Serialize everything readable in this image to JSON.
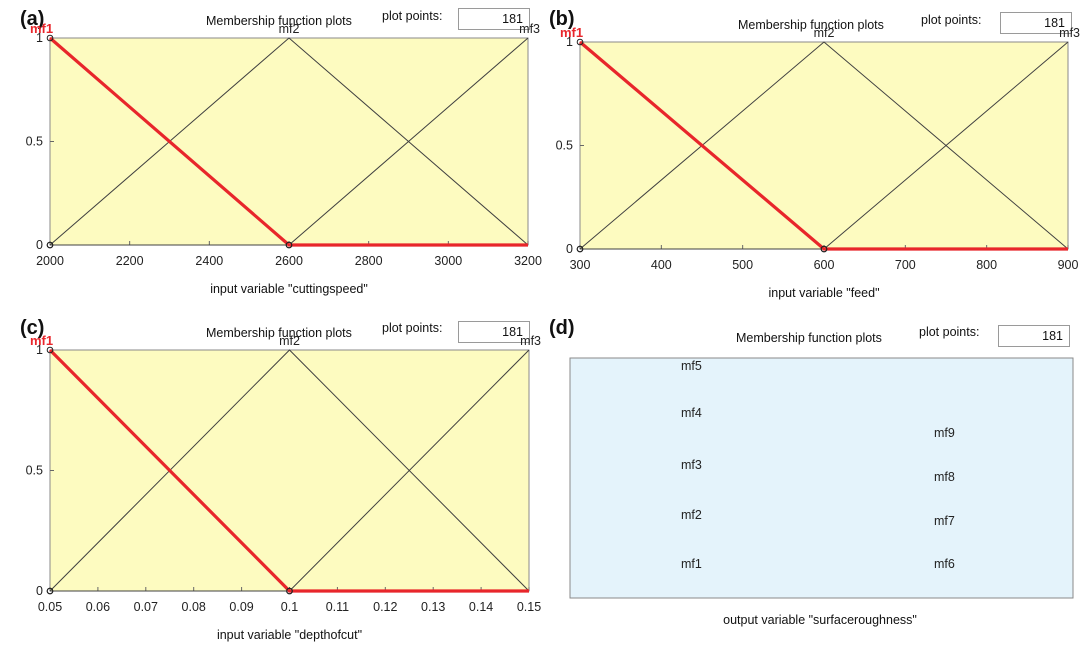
{
  "panels": [
    {
      "letter": "(a)",
      "title": "Membership function plots",
      "plot_points_label": "plot points:",
      "plot_points_value": "181"
    },
    {
      "letter": "(b)",
      "title": "Membership function plots",
      "plot_points_label": "plot points:",
      "plot_points_value": "181"
    },
    {
      "letter": "(c)",
      "title": "Membership function plots",
      "plot_points_label": "plot points:",
      "plot_points_value": "181"
    },
    {
      "letter": "(d)",
      "title": "Membership function plots",
      "plot_points_label": "plot points:",
      "plot_points_value": "181"
    }
  ],
  "colors": {
    "plot_bg": "#fdfbc0",
    "output_bg": "#e4f3fb",
    "selected": "#e8262b",
    "line": "#404040"
  },
  "chart_data": [
    {
      "type": "line",
      "xlabel": "input variable \"cuttingspeed\"",
      "xlim": [
        2000,
        3200
      ],
      "ylim": [
        0,
        1
      ],
      "xticks": [
        "2000",
        "2200",
        "2400",
        "2600",
        "2800",
        "3000",
        "3200"
      ],
      "yticks": [
        "0",
        "0.5",
        "1"
      ],
      "selected": "mf1",
      "series": [
        {
          "name": "mf1",
          "x": [
            2000,
            2600,
            3200
          ],
          "y": [
            1,
            0,
            0
          ]
        },
        {
          "name": "mf2",
          "x": [
            2000,
            2600,
            3200
          ],
          "y": [
            0,
            1,
            0
          ]
        },
        {
          "name": "mf3",
          "x": [
            2000,
            2600,
            3200
          ],
          "y": [
            0,
            0,
            1
          ]
        }
      ]
    },
    {
      "type": "line",
      "xlabel": "input variable \"feed\"",
      "xlim": [
        300,
        900
      ],
      "ylim": [
        0,
        1
      ],
      "xticks": [
        "300",
        "400",
        "500",
        "600",
        "700",
        "800",
        "900"
      ],
      "yticks": [
        "0",
        "0.5",
        "1"
      ],
      "selected": "mf1",
      "series": [
        {
          "name": "mf1",
          "x": [
            300,
            600,
            900
          ],
          "y": [
            1,
            0,
            0
          ]
        },
        {
          "name": "mf2",
          "x": [
            300,
            600,
            900
          ],
          "y": [
            0,
            1,
            0
          ]
        },
        {
          "name": "mf3",
          "x": [
            300,
            600,
            900
          ],
          "y": [
            0,
            0,
            1
          ]
        }
      ]
    },
    {
      "type": "line",
      "xlabel": "input variable \"depthofcut\"",
      "xlim": [
        0.05,
        0.15
      ],
      "ylim": [
        0,
        1
      ],
      "xticks": [
        "0.05",
        "0.06",
        "0.07",
        "0.08",
        "0.09",
        "0.1",
        "0.11",
        "0.12",
        "0.13",
        "0.14",
        "0.15"
      ],
      "yticks": [
        "0",
        "0.5",
        "1"
      ],
      "selected": "mf1",
      "series": [
        {
          "name": "mf1",
          "x": [
            0.05,
            0.1,
            0.15
          ],
          "y": [
            1,
            0,
            0
          ]
        },
        {
          "name": "mf2",
          "x": [
            0.05,
            0.1,
            0.15
          ],
          "y": [
            0,
            1,
            0
          ]
        },
        {
          "name": "mf3",
          "x": [
            0.05,
            0.1,
            0.15
          ],
          "y": [
            0,
            0,
            1
          ]
        }
      ]
    },
    {
      "type": "table",
      "xlabel": "output variable \"surfaceroughness\"",
      "column_1": [
        "mf5",
        "mf4",
        "mf3",
        "mf2",
        "mf1"
      ],
      "column_2": [
        "mf9",
        "mf8",
        "mf7",
        "mf6"
      ]
    }
  ]
}
